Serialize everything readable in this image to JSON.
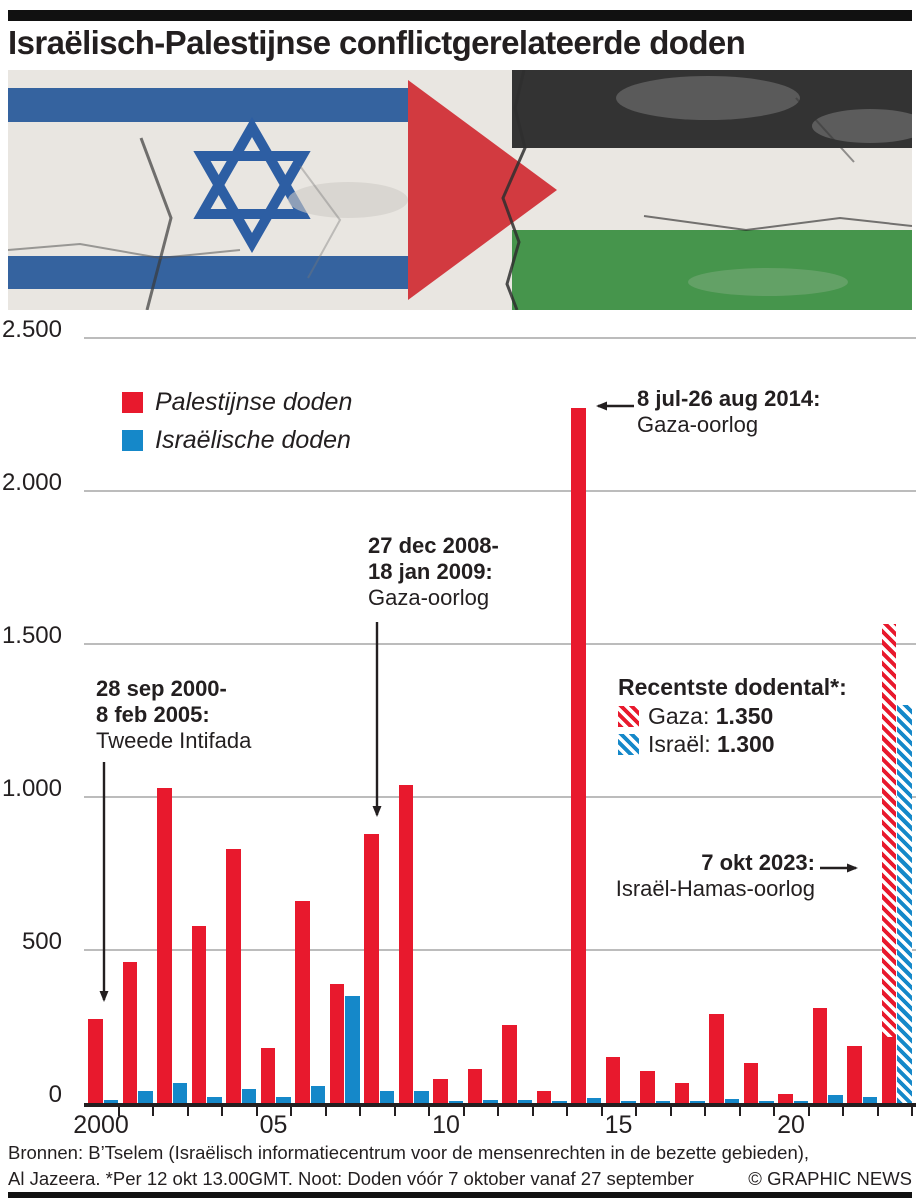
{
  "title": "Israëlisch-Palestijnse conflictgerelateerde doden",
  "flags_banner": {
    "description": "israeli-and-palestinian-flags-on-cracked-concrete",
    "israel_stripe_blue": "#35639f",
    "israel_star_blue": "#2d5ea3",
    "palestine_black": "#333333",
    "palestine_green": "#46954c",
    "palestine_red": "#d23a40",
    "concrete_white": "#e9e6e1"
  },
  "chart_data": {
    "type": "bar",
    "title": "Israëlisch-Palestijnse conflictgerelateerde doden",
    "x": [
      2000,
      2001,
      2002,
      2003,
      2004,
      2005,
      2006,
      2007,
      2008,
      2009,
      2010,
      2011,
      2012,
      2013,
      2014,
      2015,
      2016,
      2017,
      2018,
      2019,
      2020,
      2021,
      2022,
      2023
    ],
    "series": [
      {
        "name": "Palestijnse doden",
        "color": "#e8192d",
        "values": [
          275,
          460,
          1030,
          580,
          830,
          180,
          660,
          390,
          880,
          1040,
          80,
          110,
          255,
          40,
          2270,
          150,
          105,
          65,
          290,
          130,
          30,
          310,
          185,
          215
        ]
      },
      {
        "name": "Israëlische doden",
        "color": "#1588c9",
        "values": [
          10,
          40,
          65,
          20,
          45,
          18,
          55,
          350,
          40,
          38,
          8,
          10,
          10,
          5,
          15,
          8,
          5,
          5,
          12,
          8,
          5,
          25,
          20,
          0
        ]
      }
    ],
    "hatched_2023_additional": {
      "palestinian": 1350,
      "israeli": 1300
    },
    "ylim": [
      0,
      2500
    ],
    "y_ticks": [
      {
        "value": 0,
        "text": "0"
      },
      {
        "value": 500,
        "text": "500"
      },
      {
        "value": 1000,
        "text": "1.000"
      },
      {
        "value": 1500,
        "text": "1.500"
      },
      {
        "value": 2000,
        "text": "2.000"
      },
      {
        "value": 2500,
        "text": "2.500"
      }
    ],
    "x_tick_labels": [
      {
        "year": 2000,
        "text": "2000"
      },
      {
        "year": 2005,
        "text": "05"
      },
      {
        "year": 2010,
        "text": "10"
      },
      {
        "year": 2015,
        "text": "15"
      },
      {
        "year": 2020,
        "text": "20"
      }
    ],
    "grid": true,
    "legend_position": "top-left"
  },
  "annotations": {
    "intifada": {
      "line1": "28 sep 2000-",
      "line2": "8 feb 2005:",
      "label": "Tweede Intifada"
    },
    "gaza_2009": {
      "line1": "27 dec 2008-",
      "line2": "18 jan 2009:",
      "label": "Gaza-oorlog"
    },
    "gaza_2014": {
      "line1": "8 jul-26 aug 2014:",
      "label": "Gaza-oorlog"
    },
    "okt_2023": {
      "line1": "7 okt 2023:",
      "label": "Israël-Hamas-oorlog"
    }
  },
  "recent_box": {
    "title": "Recentste dodental*:",
    "gaza_label": "Gaza:",
    "gaza_value": "1.350",
    "israel_label": "Israël:",
    "israel_value": "1.300"
  },
  "footer": {
    "line1": "Bronnen: B’Tselem (Israëlisch informatiecentrum voor de mensenrechten in de bezette gebieden),",
    "line2": "Al Jazeera. *Per 12 okt 13.00GMT. Noot: Doden vóór 7 oktober vanaf 27 september",
    "credit": "© GRAPHIC NEWS"
  }
}
